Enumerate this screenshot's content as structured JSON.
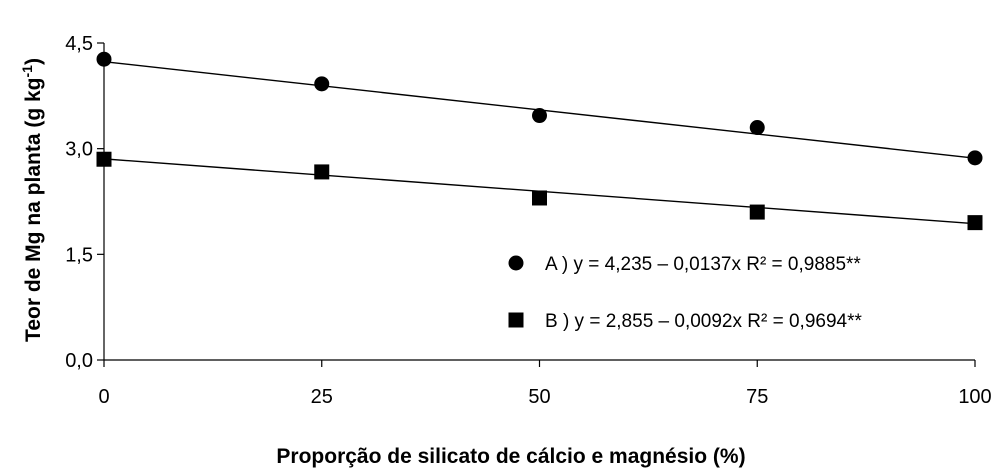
{
  "chart_data": {
    "type": "scatter",
    "title": "",
    "xlabel": "Proporção de silicato de cálcio e magnésio (%)",
    "ylabel_main": "Teor de Mg na planta (g kg",
    "ylabel_sup": "-1",
    "ylabel_close": ")",
    "x": [
      0,
      25,
      50,
      75,
      100
    ],
    "xlim": [
      0,
      100
    ],
    "ylim": [
      0,
      4.5
    ],
    "x_ticks": [
      "0",
      "25",
      "50",
      "75",
      "100"
    ],
    "y_ticks": [
      "0,0",
      "1,5",
      "3,0",
      "4,5"
    ],
    "x_tick_values": [
      0,
      25,
      50,
      75,
      100
    ],
    "y_tick_values": [
      0,
      1.5,
      3.0,
      4.5
    ],
    "grid": false,
    "legend_position": "bottom-right",
    "series": [
      {
        "marker": "circle",
        "values": [
          4.27,
          3.92,
          3.47,
          3.3,
          2.87
        ],
        "fit": {
          "intercept": 4.235,
          "slope": -0.0137
        },
        "legend": "A )  y   = 4,235 – 0,0137x R² = 0,9885**"
      },
      {
        "marker": "square",
        "values": [
          2.85,
          2.67,
          2.3,
          2.1,
          1.95
        ],
        "fit": {
          "intercept": 2.855,
          "slope": -0.0092
        },
        "legend": "B )  y   = 2,855 – 0,0092x R² = 0,9694**"
      }
    ]
  }
}
